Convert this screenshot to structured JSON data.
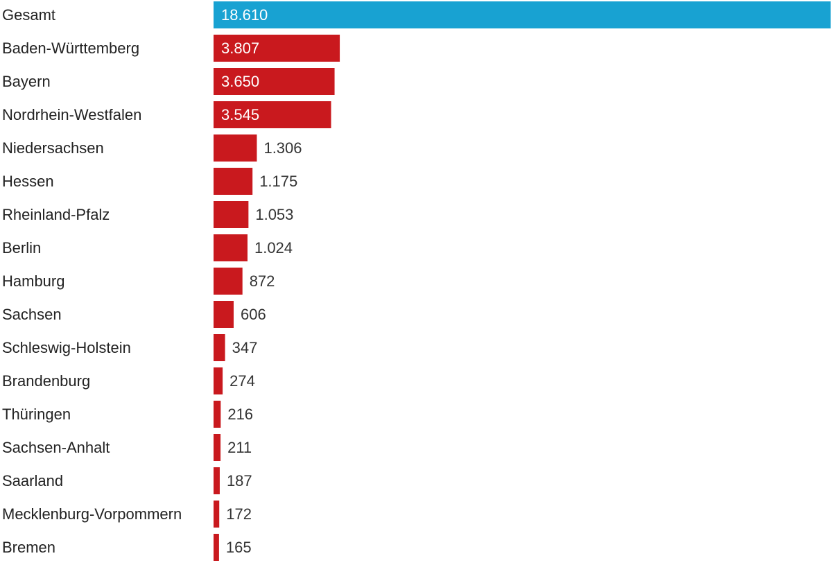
{
  "chart_data": {
    "type": "bar",
    "orientation": "horizontal",
    "categories": [
      "Gesamt",
      "Baden-Württemberg",
      "Bayern",
      "Nordrhein-Westfalen",
      "Niedersachsen",
      "Hessen",
      "Rheinland-Pfalz",
      "Berlin",
      "Hamburg",
      "Sachsen",
      "Schleswig-Holstein",
      "Brandenburg",
      "Thüringen",
      "Sachsen-Anhalt",
      "Saarland",
      "Mecklenburg-Vorpommern",
      "Bremen"
    ],
    "values": [
      18610,
      3807,
      3650,
      3545,
      1306,
      1175,
      1053,
      1024,
      872,
      606,
      347,
      274,
      216,
      211,
      187,
      172,
      165
    ],
    "value_labels": [
      "18.610",
      "3.807",
      "3.650",
      "3.545",
      "1.306",
      "1.175",
      "1.053",
      "1.024",
      "872",
      "606",
      "347",
      "274",
      "216",
      "211",
      "187",
      "172",
      "165"
    ],
    "colors": [
      "#18a2d2",
      "#c9191e",
      "#c9191e",
      "#c9191e",
      "#c9191e",
      "#c9191e",
      "#c9191e",
      "#c9191e",
      "#c9191e",
      "#c9191e",
      "#c9191e",
      "#c9191e",
      "#c9191e",
      "#c9191e",
      "#c9191e",
      "#c9191e",
      "#c9191e"
    ]
  }
}
